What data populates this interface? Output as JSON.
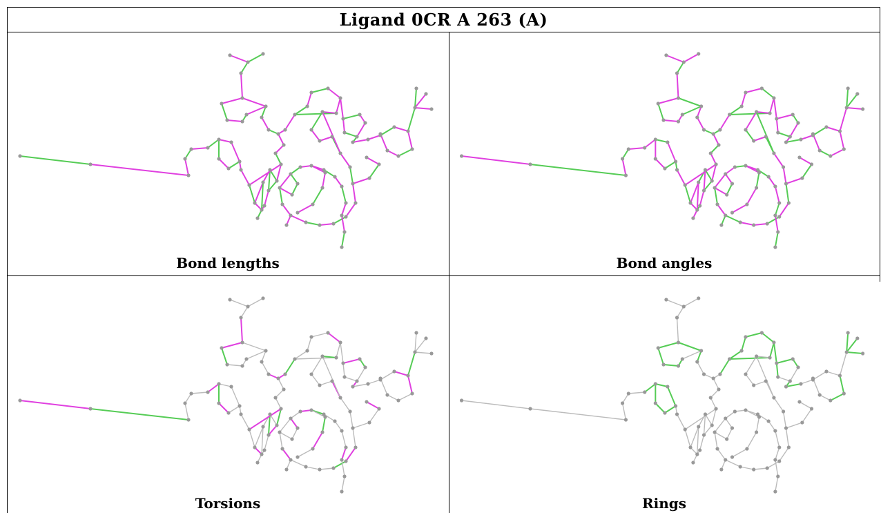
{
  "title": "Ligand 0CR A 263 (A)",
  "panels": [
    {
      "caption": "Bond lengths",
      "scheme": "lengths"
    },
    {
      "caption": "Bond angles",
      "scheme": "angles"
    },
    {
      "caption": "Torsions",
      "scheme": "torsions"
    },
    {
      "caption": "Rings",
      "scheme": "rings"
    }
  ],
  "colors": {
    "outlier": "#e040e0",
    "ok": "#55cc55",
    "neutral": "#bbbbbb",
    "atom": "#999999"
  }
}
